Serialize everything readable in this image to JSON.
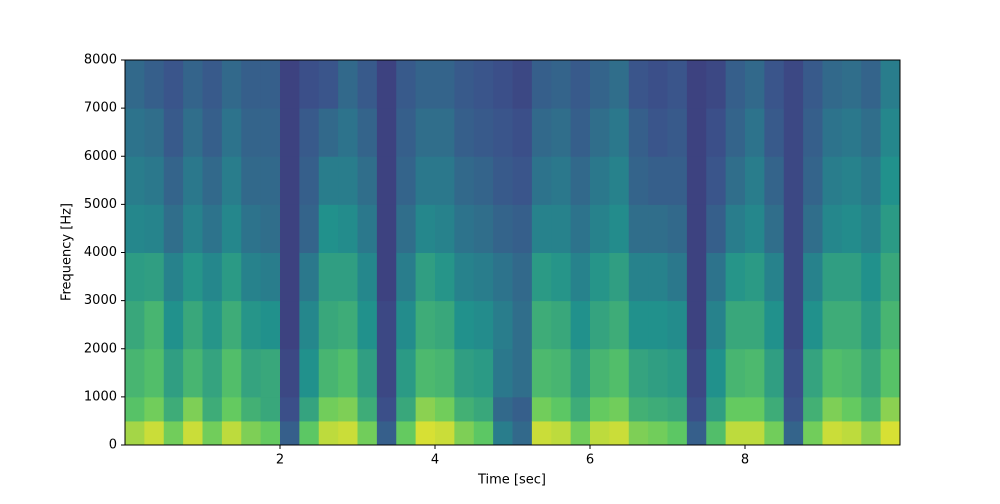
{
  "chart_data": {
    "type": "heatmap",
    "xlabel": "Time [sec]",
    "ylabel": "Frequency [Hz]",
    "colormap": "viridis",
    "xlim": [
      0,
      10
    ],
    "xticks": [
      2,
      4,
      6,
      8
    ],
    "ylim": [
      0,
      8000
    ],
    "yticks": [
      0,
      1000,
      2000,
      3000,
      4000,
      5000,
      6000,
      7000,
      8000
    ],
    "x_edges": [
      0,
      0.25,
      0.5,
      0.75,
      1,
      1.25,
      1.5,
      1.75,
      2,
      2.25,
      2.5,
      2.75,
      3,
      3.25,
      3.5,
      3.75,
      4,
      4.25,
      4.5,
      4.75,
      5,
      5.25,
      5.5,
      5.75,
      6,
      6.25,
      6.5,
      6.75,
      7,
      7.25,
      7.5,
      7.75,
      8,
      8.25,
      8.5,
      8.75,
      9,
      9.25,
      9.5,
      9.75,
      10
    ],
    "y_edges": [
      0,
      500,
      1000,
      2000,
      3000,
      4000,
      5000,
      6000,
      7000,
      8000
    ],
    "z": [
      [
        0.86,
        0.72,
        0.66,
        0.6,
        0.55,
        0.46,
        0.42,
        0.38,
        0.34
      ],
      [
        0.92,
        0.78,
        0.7,
        0.66,
        0.56,
        0.45,
        0.4,
        0.36,
        0.3
      ],
      [
        0.78,
        0.62,
        0.56,
        0.5,
        0.44,
        0.36,
        0.32,
        0.28,
        0.26
      ],
      [
        0.92,
        0.8,
        0.66,
        0.6,
        0.52,
        0.44,
        0.4,
        0.36,
        0.32
      ],
      [
        0.78,
        0.62,
        0.58,
        0.52,
        0.46,
        0.38,
        0.34,
        0.3,
        0.28
      ],
      [
        0.9,
        0.76,
        0.7,
        0.62,
        0.54,
        0.46,
        0.42,
        0.38,
        0.34
      ],
      [
        0.8,
        0.64,
        0.58,
        0.52,
        0.44,
        0.38,
        0.34,
        0.32,
        0.3
      ],
      [
        0.76,
        0.6,
        0.6,
        0.5,
        0.42,
        0.36,
        0.34,
        0.32,
        0.3
      ],
      [
        0.3,
        0.24,
        0.22,
        0.2,
        0.2,
        0.2,
        0.2,
        0.2,
        0.2
      ],
      [
        0.74,
        0.58,
        0.5,
        0.46,
        0.4,
        0.32,
        0.3,
        0.28,
        0.24
      ],
      [
        0.9,
        0.78,
        0.66,
        0.6,
        0.56,
        0.5,
        0.42,
        0.34,
        0.26
      ],
      [
        0.92,
        0.8,
        0.7,
        0.62,
        0.56,
        0.48,
        0.42,
        0.38,
        0.34
      ],
      [
        0.78,
        0.62,
        0.56,
        0.5,
        0.46,
        0.4,
        0.36,
        0.32,
        0.28
      ],
      [
        0.3,
        0.24,
        0.22,
        0.22,
        0.2,
        0.2,
        0.2,
        0.2,
        0.2
      ],
      [
        0.76,
        0.6,
        0.54,
        0.48,
        0.42,
        0.36,
        0.32,
        0.3,
        0.28
      ],
      [
        0.94,
        0.82,
        0.68,
        0.62,
        0.56,
        0.46,
        0.4,
        0.36,
        0.32
      ],
      [
        0.92,
        0.78,
        0.66,
        0.6,
        0.52,
        0.44,
        0.4,
        0.36,
        0.32
      ],
      [
        0.8,
        0.64,
        0.56,
        0.5,
        0.44,
        0.38,
        0.34,
        0.3,
        0.28
      ],
      [
        0.74,
        0.6,
        0.54,
        0.48,
        0.42,
        0.36,
        0.32,
        0.28,
        0.26
      ],
      [
        0.42,
        0.34,
        0.4,
        0.42,
        0.38,
        0.32,
        0.28,
        0.26,
        0.24
      ],
      [
        0.34,
        0.3,
        0.36,
        0.36,
        0.34,
        0.3,
        0.26,
        0.24,
        0.22
      ],
      [
        0.92,
        0.78,
        0.68,
        0.62,
        0.54,
        0.44,
        0.38,
        0.34,
        0.3
      ],
      [
        0.9,
        0.74,
        0.66,
        0.6,
        0.52,
        0.44,
        0.4,
        0.36,
        0.32
      ],
      [
        0.78,
        0.62,
        0.56,
        0.5,
        0.44,
        0.38,
        0.34,
        0.3,
        0.28
      ],
      [
        0.9,
        0.76,
        0.66,
        0.58,
        0.52,
        0.44,
        0.4,
        0.36,
        0.32
      ],
      [
        0.92,
        0.78,
        0.7,
        0.62,
        0.56,
        0.48,
        0.44,
        0.4,
        0.36
      ],
      [
        0.8,
        0.64,
        0.58,
        0.5,
        0.44,
        0.36,
        0.32,
        0.3,
        0.26
      ],
      [
        0.78,
        0.62,
        0.56,
        0.5,
        0.44,
        0.36,
        0.3,
        0.26,
        0.24
      ],
      [
        0.74,
        0.6,
        0.54,
        0.48,
        0.4,
        0.34,
        0.3,
        0.28,
        0.26
      ],
      [
        0.3,
        0.24,
        0.22,
        0.2,
        0.2,
        0.2,
        0.2,
        0.2,
        0.2
      ],
      [
        0.7,
        0.56,
        0.5,
        0.44,
        0.38,
        0.3,
        0.26,
        0.24,
        0.22
      ],
      [
        0.9,
        0.76,
        0.66,
        0.6,
        0.52,
        0.42,
        0.36,
        0.32,
        0.3
      ],
      [
        0.9,
        0.76,
        0.68,
        0.6,
        0.54,
        0.46,
        0.42,
        0.38,
        0.34
      ],
      [
        0.78,
        0.62,
        0.56,
        0.5,
        0.44,
        0.36,
        0.32,
        0.28,
        0.26
      ],
      [
        0.32,
        0.26,
        0.24,
        0.22,
        0.22,
        0.22,
        0.22,
        0.22,
        0.22
      ],
      [
        0.78,
        0.64,
        0.58,
        0.5,
        0.44,
        0.36,
        0.32,
        0.3,
        0.28
      ],
      [
        0.92,
        0.8,
        0.7,
        0.62,
        0.56,
        0.46,
        0.42,
        0.38,
        0.34
      ],
      [
        0.9,
        0.76,
        0.68,
        0.62,
        0.56,
        0.48,
        0.44,
        0.4,
        0.36
      ],
      [
        0.82,
        0.66,
        0.6,
        0.54,
        0.5,
        0.44,
        0.4,
        0.36,
        0.32
      ],
      [
        0.94,
        0.82,
        0.72,
        0.66,
        0.6,
        0.54,
        0.5,
        0.46,
        0.42
      ]
    ]
  }
}
